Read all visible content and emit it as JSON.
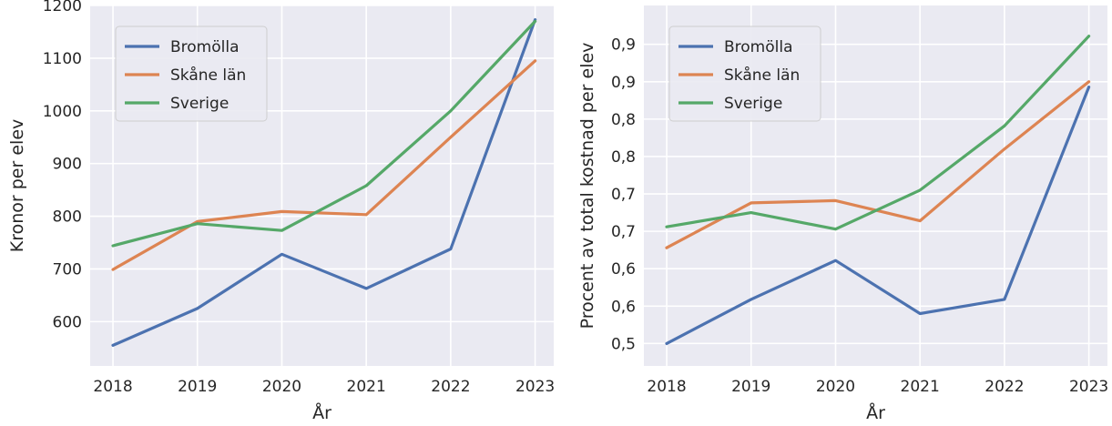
{
  "colors": {
    "background": "#ffffff",
    "plot_background": "#eaeaf2",
    "grid": "#ffffff",
    "text": "#262626"
  },
  "chart_data": [
    {
      "type": "line",
      "title": "",
      "xlabel": "År",
      "ylabel": "Kronor per elev",
      "x": [
        2018,
        2019,
        2020,
        2021,
        2022,
        2023
      ],
      "xticks": [
        "2018",
        "2019",
        "2020",
        "2021",
        "2022",
        "2023"
      ],
      "xlim": [
        2017.73,
        2023.22
      ],
      "ylim": [
        516,
        1200
      ],
      "yticks": [
        600,
        700,
        800,
        900,
        1000,
        1100,
        1200
      ],
      "yticklabels": [
        "600",
        "700",
        "800",
        "900",
        "1000",
        "1100",
        "1200"
      ],
      "grid": true,
      "legend": "top-left",
      "series": [
        {
          "name": "Bromölla",
          "color": "#4c72b0",
          "values": [
            555,
            625,
            728,
            663,
            738,
            1173
          ]
        },
        {
          "name": "Skåne län",
          "color": "#dd8452",
          "values": [
            699,
            790,
            809,
            803,
            950,
            1095
          ]
        },
        {
          "name": "Sverige",
          "color": "#55a868",
          "values": [
            744,
            786,
            773,
            858,
            1000,
            1170
          ]
        }
      ]
    },
    {
      "type": "line",
      "title": "",
      "xlabel": "År",
      "ylabel": "Procent av total kostnad per elev",
      "x": [
        2018,
        2019,
        2020,
        2021,
        2022,
        2023
      ],
      "xticks": [
        "2018",
        "2019",
        "2020",
        "2021",
        "2022",
        "2023"
      ],
      "xlim": [
        2017.73,
        2023.22
      ],
      "ylim": [
        0.47,
        0.952
      ],
      "yticks": [
        0.5,
        0.55,
        0.6,
        0.65,
        0.7,
        0.75,
        0.8,
        0.85,
        0.9
      ],
      "yticklabels": [
        "0,5",
        "0,6",
        "0,6",
        "0,7",
        "0,7",
        "0,8",
        "0,8",
        "0,9",
        "0,9"
      ],
      "grid": true,
      "legend": "top-left",
      "series": [
        {
          "name": "Bromölla",
          "color": "#4c72b0",
          "values": [
            0.5,
            0.559,
            0.611,
            0.54,
            0.559,
            0.843
          ]
        },
        {
          "name": "Skåne län",
          "color": "#dd8452",
          "values": [
            0.628,
            0.688,
            0.691,
            0.664,
            0.76,
            0.85
          ]
        },
        {
          "name": "Sverige",
          "color": "#55a868",
          "values": [
            0.656,
            0.675,
            0.653,
            0.705,
            0.791,
            0.911
          ]
        }
      ]
    }
  ]
}
